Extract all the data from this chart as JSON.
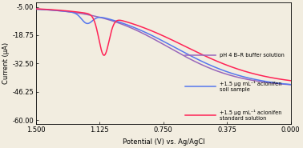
{
  "title": "",
  "xlabel": "Potential (V) vs. Ag/AgCl",
  "ylabel": "Current (μA)",
  "xlim": [
    1.5,
    0.0
  ],
  "ylim": [
    -62,
    -3
  ],
  "xticks": [
    1.5,
    1.125,
    0.75,
    0.375,
    0.0
  ],
  "yticks": [
    -5.0,
    -18.75,
    -32.5,
    -46.25,
    -60.0
  ],
  "background_color": "#f2ede0",
  "line1_color": "#9966bb",
  "line2_color": "#5577ee",
  "line3_color": "#ff2255",
  "legend_labels": [
    "pH 4 B–R buffer solution",
    "+1.5 μg mL⁻¹ aclonifen\nsoil sample",
    "+1.5 μg mL⁻¹ aclonifen\nstandard solution"
  ],
  "legend_line_colors": [
    "#9966bb",
    "#5577ee",
    "#ff2255"
  ],
  "font_size": 6.0
}
